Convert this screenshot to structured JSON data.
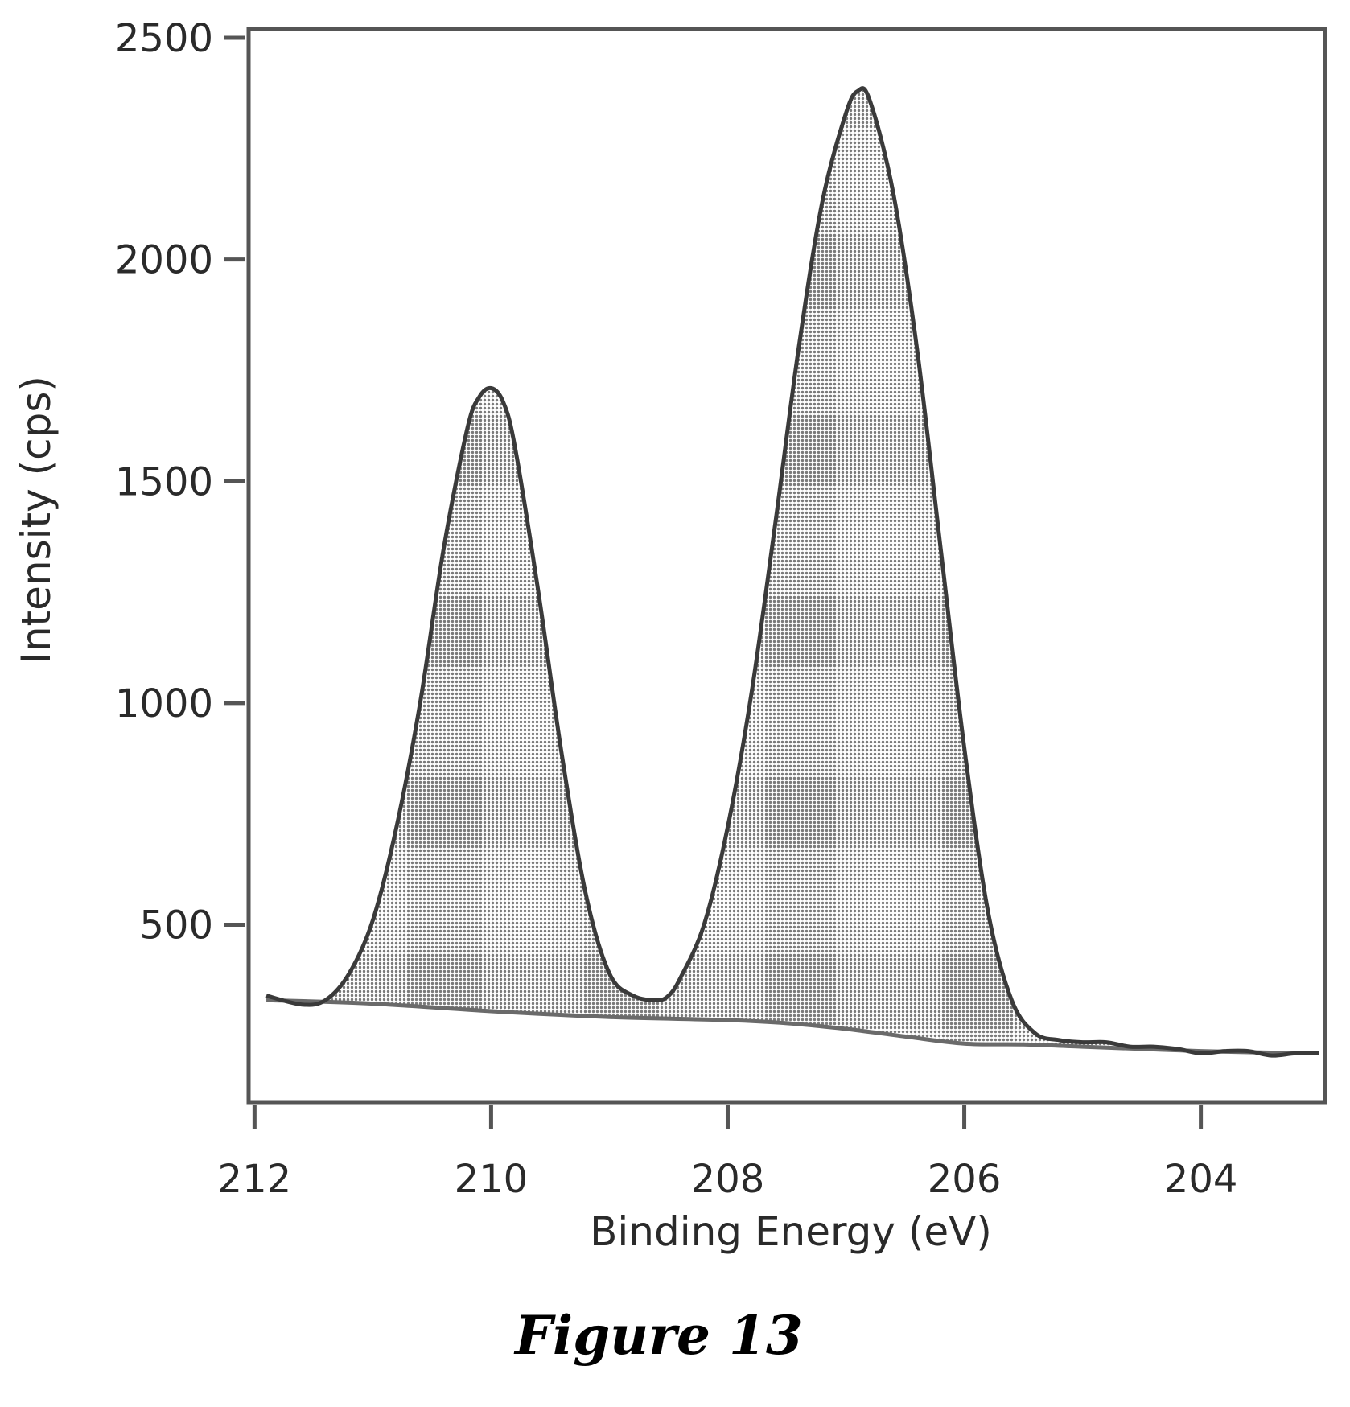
{
  "chart_data": {
    "type": "area",
    "xlabel": "Binding Energy (eV)",
    "ylabel": "Intensity (cps)",
    "x_reversed": true,
    "xlim": [
      212.05,
      202.95
    ],
    "ylim": [
      100,
      2520
    ],
    "xticks": [
      212,
      210,
      208,
      206,
      204
    ],
    "yticks": [
      500,
      1000,
      1500,
      2000,
      2500
    ],
    "grid": false,
    "legend": "none",
    "colors": {
      "line": "#3a3a3a",
      "fill": "#bdbdbd",
      "frame": "#555555",
      "text": "#2a2a2a"
    },
    "series": [
      {
        "x": [
          211.9,
          211.6,
          211.4,
          211.2,
          211.0,
          210.8,
          210.6,
          210.4,
          210.2,
          210.1,
          210.0,
          209.9,
          209.8,
          209.6,
          209.4,
          209.2,
          209.0,
          208.8,
          208.6,
          208.5,
          208.4,
          208.2,
          208.0,
          207.8,
          207.6,
          207.4,
          207.2,
          207.0,
          206.9,
          206.8,
          206.6,
          206.4,
          206.2,
          206.0,
          205.8,
          205.6,
          205.4,
          205.2,
          205.0,
          204.8,
          204.6,
          204.4,
          204.2,
          204.0,
          203.8,
          203.6,
          203.4,
          203.2,
          203.0
        ],
        "values": [
          340,
          320,
          330,
          390,
          510,
          720,
          1000,
          1350,
          1620,
          1690,
          1710,
          1680,
          1580,
          1250,
          880,
          570,
          390,
          340,
          330,
          340,
          380,
          500,
          720,
          1020,
          1400,
          1800,
          2130,
          2330,
          2380,
          2360,
          2150,
          1800,
          1350,
          900,
          530,
          330,
          255,
          240,
          235,
          235,
          225,
          225,
          220,
          210,
          215,
          215,
          205,
          210,
          210
        ]
      },
      {
        "x": [
          211.9,
          211.0,
          210.0,
          209.0,
          208.0,
          207.5,
          207.0,
          206.5,
          206.0,
          205.5,
          205.0,
          204.5,
          204.0,
          203.5,
          203.0
        ],
        "values": [
          330,
          322,
          305,
          292,
          285,
          278,
          265,
          248,
          232,
          230,
          225,
          220,
          215,
          212,
          210
        ]
      }
    ]
  },
  "caption": "Figure 13"
}
